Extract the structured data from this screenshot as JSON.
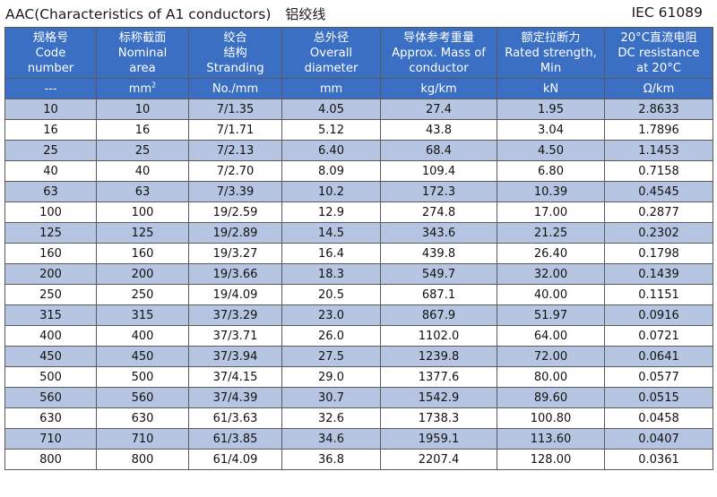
{
  "title": {
    "main": "AAC(Characteristics of A1 conductors)",
    "chinese": "铝绞线",
    "standard": "IEC 61089"
  },
  "columns": [
    {
      "lines": [
        "规格号",
        "Code",
        "number"
      ],
      "unit": "---"
    },
    {
      "lines": [
        "标称截面",
        "Nominal",
        "area"
      ],
      "unit": "mm",
      "unit_sup": "2"
    },
    {
      "lines": [
        "绞合",
        "结构",
        "Stranding"
      ],
      "unit": "No./mm"
    },
    {
      "lines": [
        "总外径",
        "Overall",
        "diameter"
      ],
      "unit": "mm"
    },
    {
      "lines": [
        "导体参考重量",
        "Approx. Mass of",
        "conductor"
      ],
      "unit": "kg/km"
    },
    {
      "lines": [
        "额定拉断力",
        "Rated strength,",
        "Min"
      ],
      "unit": "kN"
    },
    {
      "lines": [
        "20°C直流电阻",
        "DC resistance",
        "at 20°C"
      ],
      "unit": "Ω/km"
    }
  ],
  "rows": [
    [
      "10",
      "10",
      "7/1.35",
      "4.05",
      "27.4",
      "1.95",
      "2.8633"
    ],
    [
      "16",
      "16",
      "7/1.71",
      "5.12",
      "43.8",
      "3.04",
      "1.7896"
    ],
    [
      "25",
      "25",
      "7/2.13",
      "6.40",
      "68.4",
      "4.50",
      "1.1453"
    ],
    [
      "40",
      "40",
      "7/2.70",
      "8.09",
      "109.4",
      "6.80",
      "0.7158"
    ],
    [
      "63",
      "63",
      "7/3.39",
      "10.2",
      "172.3",
      "10.39",
      "0.4545"
    ],
    [
      "100",
      "100",
      "19/2.59",
      "12.9",
      "274.8",
      "17.00",
      "0.2877"
    ],
    [
      "125",
      "125",
      "19/2.89",
      "14.5",
      "343.6",
      "21.25",
      "0.2302"
    ],
    [
      "160",
      "160",
      "19/3.27",
      "16.4",
      "439.8",
      "26.40",
      "0.1798"
    ],
    [
      "200",
      "200",
      "19/3.66",
      "18.3",
      "549.7",
      "32.00",
      "0.1439"
    ],
    [
      "250",
      "250",
      "19/4.09",
      "20.5",
      "687.1",
      "40.00",
      "0.1151"
    ],
    [
      "315",
      "315",
      "37/3.29",
      "23.0",
      "867.9",
      "51.97",
      "0.0916"
    ],
    [
      "400",
      "400",
      "37/3.71",
      "26.0",
      "1102.0",
      "64.00",
      "0.0721"
    ],
    [
      "450",
      "450",
      "37/3.94",
      "27.5",
      "1239.8",
      "72.00",
      "0.0641"
    ],
    [
      "500",
      "500",
      "37/4.15",
      "29.0",
      "1377.6",
      "80.00",
      "0.0577"
    ],
    [
      "560",
      "560",
      "37/4.39",
      "30.7",
      "1542.9",
      "89.60",
      "0.0515"
    ],
    [
      "630",
      "630",
      "61/3.63",
      "32.6",
      "1738.3",
      "100.80",
      "0.0458"
    ],
    [
      "710",
      "710",
      "61/3.85",
      "34.6",
      "1959.1",
      "113.60",
      "0.0407"
    ],
    [
      "800",
      "800",
      "61/4.09",
      "36.8",
      "2207.4",
      "128.00",
      "0.0361"
    ]
  ]
}
